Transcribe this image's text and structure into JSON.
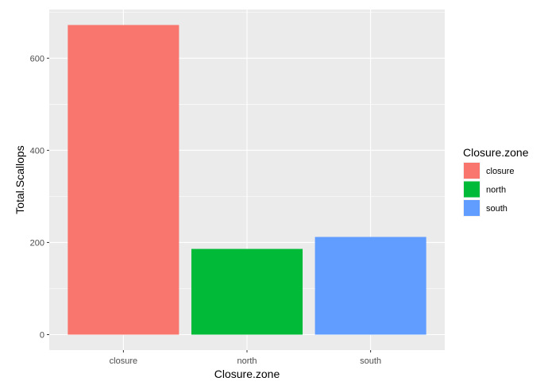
{
  "chart_data": {
    "type": "bar",
    "categories": [
      "closure",
      "north",
      "south"
    ],
    "values": [
      672,
      186,
      212
    ],
    "colors": [
      "#F8766D",
      "#00BA38",
      "#619CFF"
    ],
    "xlabel": "Closure.zone",
    "ylabel": "Total.Scallops",
    "ylim": [
      -33.6,
      705.6
    ],
    "yticks": [
      0,
      200,
      400,
      600
    ],
    "ytick_labels": [
      "0",
      "200",
      "400",
      "600"
    ],
    "grid": true,
    "panel_background": "#EBEBEB",
    "legend": {
      "title": "Closure.zone",
      "position": "right",
      "entries": [
        "closure",
        "north",
        "south"
      ]
    }
  }
}
